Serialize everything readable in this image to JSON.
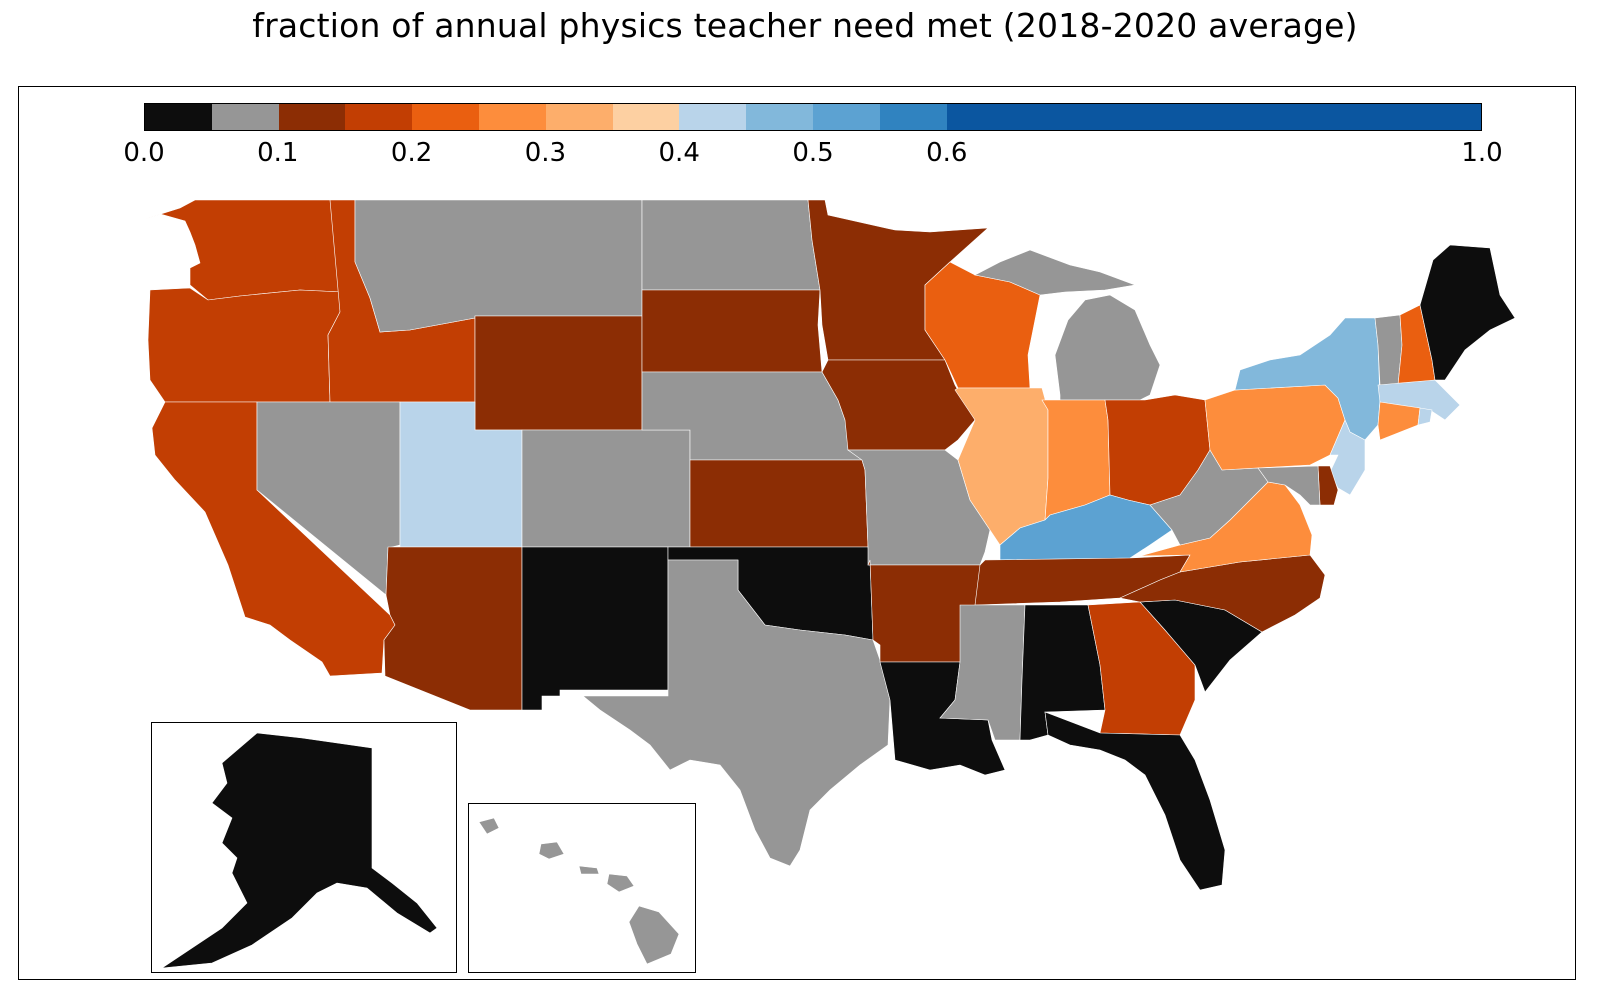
{
  "title": "fraction of annual physics teacher need met (2018-2020 average)",
  "legend": {
    "colors": [
      "#0d0d0d",
      "#969696",
      "#8c2d04",
      "#c23e03",
      "#ea5f10",
      "#fd8d3c",
      "#fdae6b",
      "#fdd0a2",
      "#b9d4ea",
      "#82b8db",
      "#5ca2d2",
      "#3083c0",
      "#0b56a0"
    ],
    "bounds": [
      0.0,
      0.05,
      0.1,
      0.15,
      0.2,
      0.25,
      0.3,
      0.35,
      0.4,
      0.45,
      0.5,
      0.55,
      0.6,
      1.0
    ],
    "tick_values": [
      0.0,
      0.1,
      0.2,
      0.3,
      0.4,
      0.5,
      0.6,
      1.0
    ],
    "tick_labels": [
      "0.0",
      "0.1",
      "0.2",
      "0.3",
      "0.4",
      "0.5",
      "0.6",
      "1.0"
    ]
  },
  "states": [
    {
      "name": "Washington",
      "bin": 3
    },
    {
      "name": "Oregon",
      "bin": 3
    },
    {
      "name": "California",
      "bin": 3
    },
    {
      "name": "Idaho",
      "bin": 3
    },
    {
      "name": "Nevada",
      "bin": 1
    },
    {
      "name": "Montana",
      "bin": 1
    },
    {
      "name": "Wyoming",
      "bin": 2
    },
    {
      "name": "Utah",
      "bin": 8
    },
    {
      "name": "Arizona",
      "bin": 2
    },
    {
      "name": "Colorado",
      "bin": 1
    },
    {
      "name": "New Mexico",
      "bin": 0
    },
    {
      "name": "North Dakota",
      "bin": 1
    },
    {
      "name": "South Dakota",
      "bin": 2
    },
    {
      "name": "Nebraska",
      "bin": 1
    },
    {
      "name": "Kansas",
      "bin": 2
    },
    {
      "name": "Oklahoma",
      "bin": 0
    },
    {
      "name": "Texas",
      "bin": 1
    },
    {
      "name": "Minnesota",
      "bin": 2
    },
    {
      "name": "Iowa",
      "bin": 2
    },
    {
      "name": "Missouri",
      "bin": 1
    },
    {
      "name": "Arkansas",
      "bin": 2
    },
    {
      "name": "Louisiana",
      "bin": 0
    },
    {
      "name": "Wisconsin",
      "bin": 4
    },
    {
      "name": "Illinois",
      "bin": 6
    },
    {
      "name": "Michigan",
      "bin": 1
    },
    {
      "name": "Indiana",
      "bin": 5
    },
    {
      "name": "Ohio",
      "bin": 3
    },
    {
      "name": "Kentucky",
      "bin": 10
    },
    {
      "name": "Tennessee",
      "bin": 2
    },
    {
      "name": "Mississippi",
      "bin": 1
    },
    {
      "name": "Alabama",
      "bin": 0
    },
    {
      "name": "Georgia",
      "bin": 3
    },
    {
      "name": "Florida",
      "bin": 0
    },
    {
      "name": "South Carolina",
      "bin": 0
    },
    {
      "name": "North Carolina",
      "bin": 2
    },
    {
      "name": "Virginia",
      "bin": 5
    },
    {
      "name": "West Virginia",
      "bin": 1
    },
    {
      "name": "Pennsylvania",
      "bin": 5
    },
    {
      "name": "New York",
      "bin": 9
    },
    {
      "name": "Vermont",
      "bin": 1
    },
    {
      "name": "New Hampshire",
      "bin": 4
    },
    {
      "name": "Maine",
      "bin": 0
    },
    {
      "name": "Massachusetts",
      "bin": 8
    },
    {
      "name": "Connecticut",
      "bin": 5
    },
    {
      "name": "Rhode Island",
      "bin": 8
    },
    {
      "name": "New Jersey",
      "bin": 8
    },
    {
      "name": "Delaware",
      "bin": 2
    },
    {
      "name": "Maryland",
      "bin": 1
    },
    {
      "name": "Alaska",
      "bin": 0
    },
    {
      "name": "Hawaii",
      "bin": 1
    }
  ]
}
